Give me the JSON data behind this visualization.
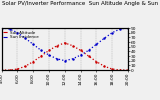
{
  "title": "Solar PV/Inverter Performance  Sun Altitude Angle & Sun Incidence Angle on PV Panels",
  "legend_line1": "Sun Altitude",
  "legend_line2": "Sun Incidence",
  "x_start": 4,
  "x_end": 20,
  "x_hours": [
    4,
    5,
    6,
    7,
    8,
    9,
    10,
    11,
    12,
    13,
    14,
    15,
    16,
    17,
    18,
    19,
    20
  ],
  "sun_altitude": [
    0,
    0,
    2,
    8,
    18,
    30,
    42,
    52,
    58,
    52,
    42,
    30,
    18,
    8,
    2,
    0,
    0
  ],
  "sun_incidence": [
    90,
    88,
    80,
    68,
    55,
    42,
    32,
    24,
    20,
    24,
    32,
    42,
    55,
    68,
    80,
    88,
    90
  ],
  "altitude_color": "#cc0000",
  "incidence_color": "#0000cc",
  "background_color": "#f0f0f0",
  "grid_color": "#888888",
  "ylim": [
    0,
    90
  ],
  "y_ticks": [
    0,
    10,
    20,
    30,
    40,
    50,
    60,
    70,
    80,
    90
  ],
  "x_tick_labels": [
    "4:00",
    "6:00",
    "8:00",
    "10:00",
    "12:00",
    "14:00",
    "16:00",
    "18:00",
    "20:00"
  ],
  "x_tick_positions": [
    4,
    6,
    8,
    10,
    12,
    14,
    16,
    18,
    20
  ],
  "title_fontsize": 4.0,
  "tick_fontsize": 3.2,
  "legend_fontsize": 3.0,
  "line_width": 0.9,
  "marker_size": 1.5
}
